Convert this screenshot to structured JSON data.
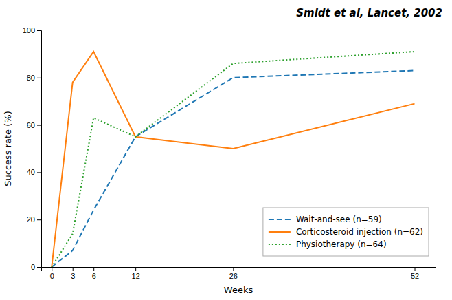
{
  "chart_data": {
    "type": "line",
    "title": "Smidt et al, Lancet, 2002",
    "xlabel": "Weeks",
    "ylabel": "Success rate (%)",
    "x": [
      0,
      3,
      6,
      12,
      26,
      52
    ],
    "xlim": [
      -1.5,
      55
    ],
    "xticks": [
      0,
      3,
      6,
      12,
      26,
      52
    ],
    "ylim": [
      0,
      100
    ],
    "yticks": [
      0,
      20,
      40,
      60,
      80,
      100
    ],
    "grid": false,
    "legend": "lower right",
    "series": [
      {
        "name": "Wait-and-see (n=59)",
        "values": [
          0,
          7,
          24,
          55,
          80,
          83
        ],
        "line_style": "dashed"
      },
      {
        "name": "Corticosteroid injection (n=62)",
        "values": [
          0,
          78,
          91,
          55,
          50,
          69
        ],
        "line_style": "solid"
      },
      {
        "name": "Physiotherapy (n=64)",
        "values": [
          0,
          14,
          63,
          55,
          86,
          91
        ],
        "line_style": "dotted"
      }
    ]
  }
}
